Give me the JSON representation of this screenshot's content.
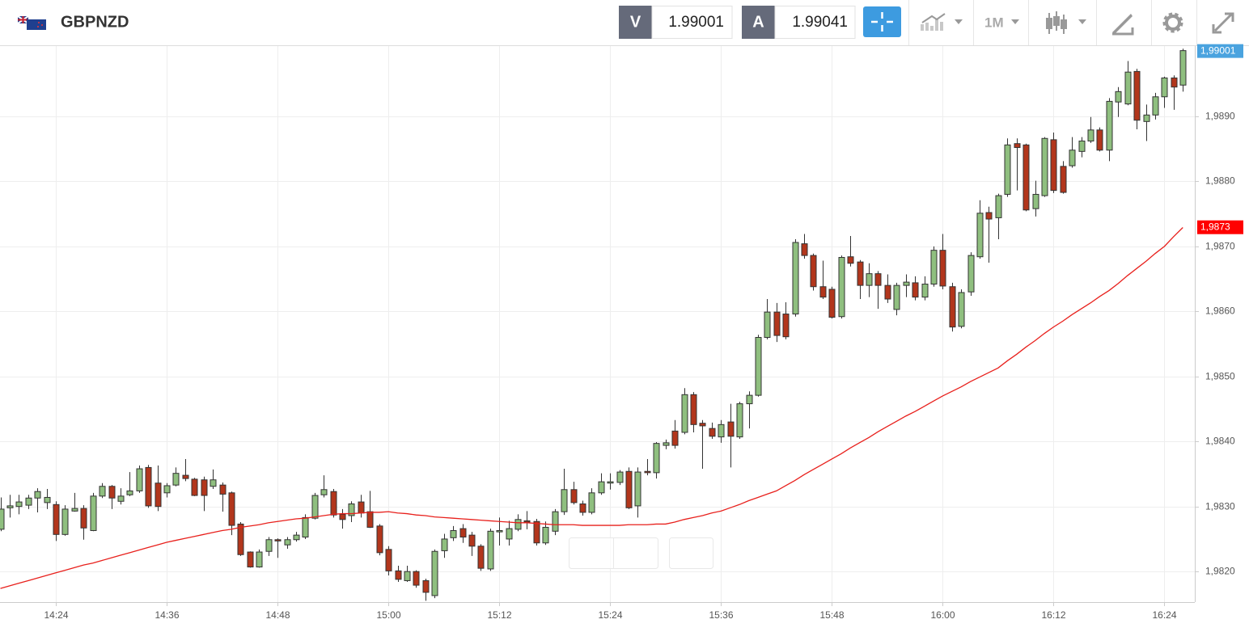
{
  "header": {
    "symbol": "GBPNZD",
    "bid_label": "V",
    "bid": "1.99001",
    "ask_label": "A",
    "ask": "1.99041",
    "timeframe": "1M"
  },
  "chart_data": {
    "type": "candlestick",
    "x": [
      null,
      null,
      null,
      null,
      null,
      null,
      "14:24",
      null,
      null,
      null,
      null,
      null,
      null,
      null,
      null,
      null,
      null,
      null,
      "14:36",
      null,
      null,
      null,
      null,
      null,
      null,
      null,
      null,
      null,
      null,
      null,
      "14:48",
      null,
      null,
      null,
      null,
      null,
      null,
      null,
      null,
      null,
      null,
      null,
      "15:00",
      null,
      null,
      null,
      null,
      null,
      null,
      null,
      null,
      null,
      null,
      null,
      "15:12",
      null,
      null,
      null,
      null,
      null,
      null,
      null,
      null,
      null,
      null,
      null,
      "15:24",
      null,
      null,
      null,
      null,
      null,
      null,
      null,
      null,
      null,
      null,
      null,
      "15:36",
      null,
      null,
      null,
      null,
      null,
      null,
      null,
      null,
      null,
      null,
      null,
      "15:48",
      null,
      null,
      null,
      null,
      null,
      null,
      null,
      null,
      null,
      null,
      null,
      "16:00",
      null,
      null,
      null,
      null,
      null,
      null,
      null,
      null,
      null,
      null,
      null,
      "16:12",
      null,
      null,
      null,
      null,
      null,
      null,
      null,
      null,
      null,
      null,
      null,
      "16:24",
      null,
      null
    ],
    "open": [
      1.98265,
      1.98298,
      1.983,
      1.98302,
      1.98313,
      1.98306,
      1.98303,
      1.98257,
      1.98293,
      1.98297,
      1.98263,
      1.98316,
      1.98331,
      1.98308,
      1.98318,
      1.98324,
      1.9836,
      1.98336,
      1.98321,
      1.98333,
      1.98348,
      1.98342,
      1.98341,
      1.98331,
      1.98333,
      1.98321,
      1.98273,
      1.9823,
      1.98207,
      1.98231,
      1.98249,
      1.98241,
      1.98249,
      1.98253,
      1.98282,
      1.98318,
      1.98323,
      1.98288,
      1.98286,
      1.98307,
      1.98292,
      1.9827,
      1.98234,
      1.98201,
      1.98186,
      1.982,
      1.98186,
      1.98163,
      1.98232,
      1.98252,
      1.98266,
      1.98256,
      1.98239,
      1.98204,
      1.98261,
      1.9825,
      1.98265,
      1.98278,
      1.98277,
      1.98244,
      1.98262,
      1.98292,
      1.98326,
      1.98304,
      1.98291,
      1.98321,
      1.98336,
      1.98337,
      1.98354,
      1.98301,
      1.98354,
      1.98352,
      1.98394,
      1.98416,
      1.98414,
      1.98472,
      1.98428,
      1.9842,
      1.98407,
      1.9843,
      1.98407,
      1.98458,
      1.98471,
      1.9856,
      1.98599,
      1.98596,
      1.98596,
      1.98704,
      1.98686,
      1.98638,
      1.98634,
      1.98592,
      1.98684,
      1.98676,
      1.9864,
      1.98658,
      1.9864,
      1.98603,
      1.9864,
      1.98644,
      1.98622,
      1.98642,
      1.98694,
      1.98638,
      1.98577,
      1.9863,
      1.98684,
      1.98752,
      1.98744,
      1.9878,
      1.98858,
      1.98856,
      1.98758,
      1.98778,
      1.98864,
      1.98823,
      1.98824,
      1.98846,
      1.98862,
      1.98879,
      1.98848,
      1.98922,
      1.98919,
      1.98969,
      1.98892,
      1.98902,
      1.9893,
      1.98959,
      1.98948
    ],
    "high": [
      1.98314,
      1.98318,
      1.98318,
      1.98318,
      1.98328,
      1.98327,
      1.98308,
      1.98302,
      1.98321,
      1.98302,
      1.98321,
      1.98336,
      1.98333,
      1.98328,
      1.98353,
      1.98363,
      1.98364,
      1.98363,
      1.98336,
      1.9836,
      1.98373,
      1.98344,
      1.98346,
      1.98357,
      1.98337,
      1.98323,
      1.98276,
      1.98231,
      1.98234,
      1.98253,
      1.98251,
      1.98253,
      1.98261,
      1.98288,
      1.98321,
      1.98348,
      1.98327,
      1.98296,
      1.98308,
      1.98318,
      1.98324,
      1.98273,
      1.98239,
      1.98209,
      1.98209,
      1.98202,
      1.98189,
      1.98234,
      1.98258,
      1.9827,
      1.98273,
      1.98261,
      1.98242,
      1.98266,
      1.98283,
      1.98278,
      1.98288,
      1.98293,
      1.98281,
      1.98277,
      1.98296,
      1.98358,
      1.98338,
      1.98309,
      1.98328,
      1.98351,
      1.98351,
      1.98356,
      1.9836,
      1.9836,
      1.98373,
      1.98399,
      1.98403,
      1.98433,
      1.98482,
      1.98476,
      1.98433,
      1.98429,
      1.98433,
      1.98458,
      1.98461,
      1.98477,
      1.98564,
      1.98619,
      1.98613,
      1.98614,
      1.98711,
      1.98719,
      1.98689,
      1.98678,
      1.98638,
      1.98686,
      1.98716,
      1.98679,
      1.98674,
      1.98662,
      1.98657,
      1.98644,
      1.98657,
      1.98654,
      1.98654,
      1.987,
      1.98719,
      1.98644,
      1.98634,
      1.98691,
      1.98771,
      1.98761,
      1.98781,
      1.98866,
      1.98866,
      1.98858,
      1.98801,
      1.98868,
      1.98875,
      1.98831,
      1.98868,
      1.98868,
      1.98899,
      1.98883,
      1.98928,
      1.98945,
      1.98985,
      1.98973,
      1.98918,
      1.98936,
      1.98961,
      1.98963,
      1.99004
    ],
    "low": [
      1.98262,
      1.98283,
      1.98288,
      1.98296,
      1.98291,
      1.98296,
      1.98247,
      1.98255,
      1.98292,
      1.98249,
      1.98262,
      1.98313,
      1.98296,
      1.98303,
      1.98316,
      1.98321,
      1.98298,
      1.98293,
      1.98314,
      1.98331,
      1.98339,
      1.98316,
      1.98293,
      1.98327,
      1.98292,
      1.98256,
      1.98224,
      1.98206,
      1.98206,
      1.98224,
      1.98221,
      1.98235,
      1.98246,
      1.9825,
      1.9828,
      1.98314,
      1.98283,
      1.98266,
      1.98276,
      1.98283,
      1.98267,
      1.98225,
      1.98194,
      1.98184,
      1.98184,
      1.98175,
      1.98155,
      1.98159,
      1.98221,
      1.98247,
      1.98244,
      1.98224,
      1.98201,
      1.98201,
      1.9824,
      1.9824,
      1.98262,
      1.98265,
      1.9824,
      1.98241,
      1.98256,
      1.98287,
      1.98303,
      1.98286,
      1.98288,
      1.98318,
      1.98326,
      1.98333,
      1.98296,
      1.98283,
      1.98348,
      1.98343,
      1.98388,
      1.98389,
      1.98411,
      1.98414,
      1.98358,
      1.98404,
      1.98398,
      1.9836,
      1.98404,
      1.9842,
      1.98469,
      1.98557,
      1.98553,
      1.98557,
      1.98592,
      1.98681,
      1.98632,
      1.98619,
      1.98589,
      1.98589,
      1.98669,
      1.98619,
      1.98622,
      1.98604,
      1.98613,
      1.98594,
      1.98622,
      1.98617,
      1.98617,
      1.98638,
      1.98634,
      1.98569,
      1.98574,
      1.98624,
      1.98681,
      1.98675,
      1.98711,
      1.98776,
      1.98786,
      1.98754,
      1.98746,
      1.98776,
      1.98782,
      1.98781,
      1.98821,
      1.98837,
      1.98859,
      1.98846,
      1.98831,
      1.98899,
      1.98917,
      1.9888,
      1.98862,
      1.98895,
      1.98913,
      1.9891,
      1.98938
    ],
    "close": [
      1.98296,
      1.98301,
      1.98307,
      1.98313,
      1.98323,
      1.98314,
      1.98257,
      1.98296,
      1.98297,
      1.98267,
      1.98316,
      1.98331,
      1.98313,
      1.98316,
      1.98324,
      1.98358,
      1.98301,
      1.983,
      1.98332,
      1.98351,
      1.98343,
      1.98317,
      1.98317,
      1.98341,
      1.98319,
      1.98271,
      1.98226,
      1.98207,
      1.9823,
      1.98249,
      1.98247,
      1.98249,
      1.98256,
      1.98283,
      1.98317,
      1.98326,
      1.98287,
      1.9828,
      1.98304,
      1.9829,
      1.98268,
      1.98229,
      1.98201,
      1.98188,
      1.982,
      1.98179,
      1.98168,
      1.98231,
      1.9825,
      1.98263,
      1.98253,
      1.98239,
      1.98205,
      1.98262,
      1.98263,
      1.98266,
      1.9828,
      1.98276,
      1.98244,
      1.98268,
      1.98292,
      1.98326,
      1.98306,
      1.98291,
      1.98321,
      1.98338,
      1.98338,
      1.98353,
      1.98298,
      1.98353,
      1.98352,
      1.98397,
      1.98398,
      1.98394,
      1.98472,
      1.98426,
      1.98424,
      1.98408,
      1.98426,
      1.98408,
      1.98458,
      1.98471,
      1.9856,
      1.98599,
      1.98563,
      1.98561,
      1.98706,
      1.98686,
      1.98638,
      1.98622,
      1.98591,
      1.98683,
      1.98674,
      1.9864,
      1.98658,
      1.9864,
      1.98619,
      1.9864,
      1.98645,
      1.98622,
      1.98642,
      1.98694,
      1.98639,
      1.98576,
      1.98629,
      1.98686,
      1.98751,
      1.98742,
      1.98778,
      1.98856,
      1.98852,
      1.98756,
      1.9878,
      1.98866,
      1.98786,
      1.98783,
      1.98848,
      1.98862,
      1.98879,
      1.98848,
      1.98923,
      1.98938,
      1.98968,
      1.98894,
      1.98902,
      1.9893,
      1.98959,
      1.98945,
      1.99001
    ],
    "up_color": "#8fbf7f",
    "down_color": "#b2361c",
    "ma": {
      "color": "#e8201c",
      "values": [
        1.98174,
        1.98178,
        1.98182,
        1.98186,
        1.9819,
        1.98194,
        1.98198,
        1.98202,
        1.98206,
        1.9821,
        1.98213,
        1.98217,
        1.98221,
        1.98225,
        1.98229,
        1.98233,
        1.98237,
        1.98241,
        1.98245,
        1.98248,
        1.98251,
        1.98254,
        1.98257,
        1.9826,
        1.98263,
        1.98265,
        1.98268,
        1.9827,
        1.98272,
        1.98275,
        1.98277,
        1.98279,
        1.98281,
        1.98282,
        1.98284,
        1.98286,
        1.98288,
        1.98289,
        1.98289,
        1.9829,
        1.98291,
        1.98291,
        1.98292,
        1.9829,
        1.98289,
        1.98287,
        1.98286,
        1.98284,
        1.98283,
        1.98282,
        1.98281,
        1.9828,
        1.98279,
        1.98278,
        1.98277,
        1.98276,
        1.98275,
        1.98275,
        1.98274,
        1.98273,
        1.98272,
        1.98272,
        1.98272,
        1.98271,
        1.98271,
        1.98271,
        1.98271,
        1.98271,
        1.98272,
        1.98272,
        1.98272,
        1.98273,
        1.98273,
        1.98276,
        1.9828,
        1.98283,
        1.98286,
        1.9829,
        1.98293,
        1.98298,
        1.98303,
        1.98309,
        1.98314,
        1.98319,
        1.98324,
        1.98332,
        1.9834,
        1.98349,
        1.98357,
        1.98365,
        1.98373,
        1.98381,
        1.9839,
        1.98398,
        1.98406,
        1.98415,
        1.98423,
        1.98431,
        1.98439,
        1.98446,
        1.98454,
        1.98462,
        1.9847,
        1.98477,
        1.98484,
        1.98492,
        1.98499,
        1.98506,
        1.98513,
        1.98524,
        1.98534,
        1.98545,
        1.98555,
        1.98566,
        1.98576,
        1.98585,
        1.98595,
        1.98604,
        1.98613,
        1.98623,
        1.98632,
        1.98643,
        1.98655,
        1.98666,
        1.98677,
        1.98689,
        1.987,
        1.98715,
        1.98729
      ]
    },
    "ylim": [
      1.98153,
      1.99008
    ],
    "yticks": [
      {
        "value": 1.982,
        "label": "1,9820"
      },
      {
        "value": 1.983,
        "label": "1,9830"
      },
      {
        "value": 1.984,
        "label": "1,9840"
      },
      {
        "value": 1.985,
        "label": "1,9850"
      },
      {
        "value": 1.986,
        "label": "1,9860"
      },
      {
        "value": 1.987,
        "label": "1,9870"
      },
      {
        "value": 1.988,
        "label": "1,9880"
      },
      {
        "value": 1.989,
        "label": "1,9890"
      }
    ],
    "grid": true,
    "last_price": {
      "value": 1.99001,
      "label": "1,99001",
      "color": "#4aa3df"
    },
    "ma_label": {
      "value": 1.9873,
      "label": "1,9873",
      "color": "#ff0000"
    }
  }
}
